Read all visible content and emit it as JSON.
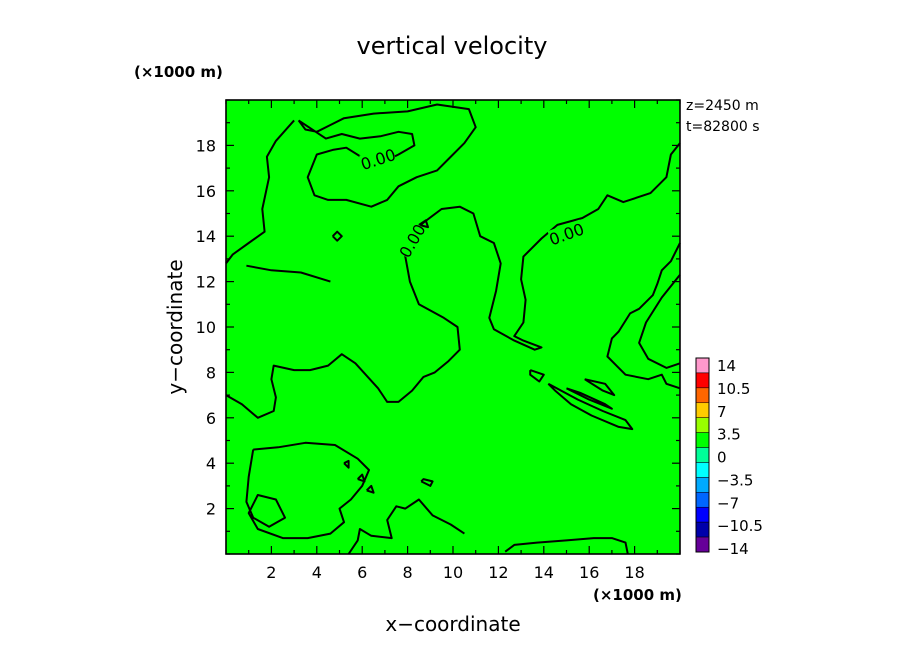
{
  "chart_data": {
    "type": "heatmap",
    "title": "vertical velocity",
    "xlabel": "x−coordinate",
    "ylabel": "y−coordinate",
    "x_unit": "(×1000 m)",
    "y_unit": "(×1000 m)",
    "xlim": [
      0,
      20
    ],
    "ylim": [
      0,
      20
    ],
    "x_ticks": [
      2,
      4,
      6,
      8,
      10,
      12,
      14,
      16,
      18
    ],
    "y_ticks": [
      2,
      4,
      6,
      8,
      10,
      12,
      14,
      16,
      18
    ],
    "x_tick_labels": [
      "2",
      "4",
      "6",
      "8",
      "10",
      "12",
      "14",
      "16",
      "18"
    ],
    "y_tick_labels": [
      "2",
      "4",
      "6",
      "8",
      "10",
      "12",
      "14",
      "16",
      "18"
    ],
    "annotations": [
      "z=2450  m",
      "t=82800  s"
    ],
    "fill_level": "0",
    "fill_color": "#00ff00",
    "contour_labels": [
      {
        "text": "0.00",
        "x": 6.7,
        "y": 17.4,
        "angle": -18
      },
      {
        "text": "0.00",
        "x": 15.0,
        "y": 14.1,
        "angle": -20
      },
      {
        "text": "0.00",
        "x": 8.2,
        "y": 13.8,
        "angle": -60
      }
    ],
    "contours": [
      [
        [
          3,
          19.1
        ],
        [
          2.2,
          18.2
        ],
        [
          1.8,
          17.5
        ],
        [
          1.9,
          16.6
        ],
        [
          1.6,
          15.2
        ],
        [
          1.7,
          14.2
        ],
        [
          1,
          13.7
        ],
        [
          0.3,
          13.2
        ],
        [
          0,
          12.8
        ]
      ],
      [
        [
          0,
          7.0
        ],
        [
          0.7,
          6.6
        ],
        [
          1.4,
          6.0
        ],
        [
          2.1,
          6.3
        ],
        [
          2.2,
          6.9
        ],
        [
          2.0,
          7.7
        ],
        [
          2.1,
          8.3
        ],
        [
          3.0,
          8.1
        ],
        [
          3.7,
          8.1
        ],
        [
          4.5,
          8.3
        ],
        [
          5.1,
          8.8
        ],
        [
          5.7,
          8.4
        ],
        [
          6.7,
          7.3
        ],
        [
          7.1,
          6.7
        ],
        [
          7.6,
          6.7
        ],
        [
          8.2,
          7.2
        ],
        [
          8.7,
          7.8
        ],
        [
          9.2,
          8.0
        ],
        [
          9.8,
          8.5
        ],
        [
          10.3,
          9.0
        ],
        [
          10.2,
          10.0
        ],
        [
          9.6,
          10.4
        ],
        [
          8.5,
          11.0
        ],
        [
          8.1,
          12.0
        ],
        [
          7.9,
          13.1
        ],
        [
          8.0,
          14.0
        ],
        [
          8.7,
          14.6
        ],
        [
          9.5,
          15.2
        ],
        [
          10.3,
          15.3
        ],
        [
          10.9,
          15.0
        ],
        [
          11.2,
          14.0
        ],
        [
          11.8,
          13.7
        ],
        [
          12.1,
          12.8
        ],
        [
          11.9,
          11.6
        ],
        [
          11.6,
          10.4
        ],
        [
          11.8,
          9.9
        ],
        [
          12.7,
          9.4
        ],
        [
          13.6,
          9.0
        ],
        [
          13.9,
          9.1
        ],
        [
          13.1,
          9.4
        ],
        [
          12.7,
          9.6
        ],
        [
          13.1,
          10.2
        ],
        [
          13.2,
          11.2
        ],
        [
          13.0,
          12.1
        ],
        [
          13.1,
          13.1
        ],
        [
          13.9,
          13.9
        ],
        [
          14.6,
          14.5
        ],
        [
          15.7,
          14.8
        ],
        [
          16.4,
          15.2
        ],
        [
          16.8,
          15.8
        ],
        [
          17.5,
          15.5
        ],
        [
          18.7,
          15.9
        ],
        [
          19.4,
          16.6
        ],
        [
          19.6,
          17.6
        ],
        [
          20,
          18.1
        ]
      ],
      [
        [
          20,
          13.7
        ],
        [
          19.6,
          12.9
        ],
        [
          19.2,
          12.5
        ],
        [
          19.0,
          11.9
        ],
        [
          18.8,
          11.4
        ],
        [
          18.2,
          10.8
        ],
        [
          17.8,
          10.6
        ],
        [
          17.3,
          9.8
        ],
        [
          17.0,
          9.5
        ],
        [
          16.8,
          8.7
        ],
        [
          17.2,
          8.3
        ],
        [
          17.6,
          7.9
        ],
        [
          18.6,
          7.7
        ],
        [
          19.2,
          7.9
        ],
        [
          19.4,
          7.5
        ],
        [
          20,
          7.3
        ]
      ],
      [
        [
          20,
          12.3
        ],
        [
          19.2,
          11.3
        ],
        [
          18.5,
          10.2
        ],
        [
          18.2,
          9.3
        ],
        [
          18.6,
          8.6
        ],
        [
          19.4,
          8.2
        ],
        [
          20,
          8.4
        ]
      ],
      [
        [
          3.2,
          19.1
        ],
        [
          3.5,
          18.7
        ],
        [
          4.0,
          18.6
        ],
        [
          4.6,
          18.9
        ],
        [
          5.2,
          19.2
        ],
        [
          6.5,
          19.4
        ],
        [
          8.0,
          19.5
        ],
        [
          9.3,
          19.8
        ],
        [
          10.7,
          19.6
        ],
        [
          11.0,
          18.8
        ],
        [
          10.5,
          18.1
        ],
        [
          9.8,
          17.4
        ],
        [
          9.3,
          16.9
        ],
        [
          8.4,
          16.6
        ],
        [
          7.6,
          16.2
        ],
        [
          7.1,
          15.6
        ],
        [
          6.4,
          15.3
        ],
        [
          5.3,
          15.6
        ],
        [
          4.5,
          15.6
        ],
        [
          3.9,
          15.8
        ],
        [
          3.6,
          16.6
        ],
        [
          4.0,
          17.6
        ],
        [
          4.7,
          17.8
        ],
        [
          5.3,
          17.9
        ],
        [
          6.1,
          17.4
        ],
        [
          6.8,
          17.2
        ],
        [
          7.6,
          17.6
        ],
        [
          8.3,
          18.0
        ],
        [
          8.2,
          18.5
        ],
        [
          7.6,
          18.6
        ],
        [
          6.8,
          18.4
        ],
        [
          5.9,
          18.3
        ],
        [
          5.1,
          18.5
        ],
        [
          4.4,
          18.3
        ],
        [
          3.2,
          19.1
        ]
      ],
      [
        [
          4.6,
          12.0
        ],
        [
          3.3,
          12.4
        ],
        [
          2.0,
          12.5
        ],
        [
          0.9,
          12.7
        ]
      ],
      [
        [
          1.2,
          4.6
        ],
        [
          2.3,
          4.7
        ],
        [
          3.5,
          4.9
        ],
        [
          4.8,
          4.8
        ],
        [
          5.8,
          4.2
        ],
        [
          6.3,
          3.7
        ],
        [
          6.0,
          3.0
        ],
        [
          5.5,
          2.4
        ],
        [
          5.0,
          2.0
        ],
        [
          5.2,
          1.4
        ],
        [
          4.6,
          0.9
        ],
        [
          3.6,
          0.7
        ],
        [
          2.5,
          0.7
        ],
        [
          1.4,
          1.1
        ],
        [
          1.0,
          1.8
        ],
        [
          1.4,
          2.6
        ],
        [
          2.2,
          2.4
        ],
        [
          2.6,
          1.6
        ],
        [
          1.9,
          1.2
        ],
        [
          1.2,
          1.6
        ],
        [
          0.9,
          2.3
        ],
        [
          1.0,
          3.4
        ],
        [
          1.2,
          4.6
        ]
      ],
      [
        [
          10.5,
          0.9
        ],
        [
          9.9,
          1.3
        ],
        [
          9.1,
          1.7
        ],
        [
          8.5,
          2.4
        ],
        [
          7.9,
          2.0
        ],
        [
          7.5,
          2.1
        ],
        [
          7.1,
          1.5
        ],
        [
          7.3,
          0.7
        ],
        [
          6.4,
          0.8
        ],
        [
          5.9,
          1.1
        ],
        [
          5.8,
          0.6
        ],
        [
          5.4,
          0.0
        ]
      ],
      [
        [
          12.3,
          0.1
        ],
        [
          12.7,
          0.4
        ],
        [
          13.7,
          0.5
        ],
        [
          15.0,
          0.6
        ],
        [
          16.2,
          0.7
        ],
        [
          17.0,
          0.7
        ],
        [
          17.6,
          0.5
        ],
        [
          17.7,
          0.0
        ]
      ],
      [
        [
          14.2,
          7.5
        ],
        [
          15.5,
          6.8
        ],
        [
          16.6,
          6.3
        ],
        [
          17.6,
          5.9
        ],
        [
          17.9,
          5.5
        ],
        [
          17.3,
          5.6
        ],
        [
          16.1,
          6.1
        ],
        [
          15.2,
          6.6
        ],
        [
          14.5,
          7.2
        ],
        [
          14.2,
          7.5
        ]
      ],
      [
        [
          15.0,
          7.3
        ],
        [
          16.0,
          6.8
        ],
        [
          17.0,
          6.4
        ],
        [
          16.7,
          6.6
        ],
        [
          15.6,
          7.1
        ],
        [
          15.0,
          7.3
        ]
      ],
      [
        [
          15.8,
          7.7
        ],
        [
          16.7,
          7.5
        ],
        [
          17.1,
          7.0
        ],
        [
          16.6,
          7.2
        ],
        [
          15.8,
          7.7
        ]
      ],
      [
        [
          13.4,
          8.1
        ],
        [
          14.0,
          7.9
        ],
        [
          13.8,
          7.6
        ],
        [
          13.4,
          7.9
        ],
        [
          13.4,
          8.1
        ]
      ],
      [
        [
          4.7,
          14.0
        ],
        [
          4.9,
          13.8
        ],
        [
          5.1,
          14.0
        ],
        [
          4.9,
          14.2
        ],
        [
          4.7,
          14.0
        ]
      ],
      [
        [
          5.2,
          4.0
        ],
        [
          5.4,
          3.8
        ],
        [
          5.4,
          4.1
        ],
        [
          5.2,
          4.0
        ]
      ],
      [
        [
          5.8,
          3.3
        ],
        [
          6.1,
          3.2
        ],
        [
          6.0,
          3.5
        ],
        [
          5.8,
          3.3
        ]
      ],
      [
        [
          6.2,
          2.8
        ],
        [
          6.5,
          2.7
        ],
        [
          6.4,
          3.0
        ],
        [
          6.2,
          2.8
        ]
      ],
      [
        [
          8.6,
          3.2
        ],
        [
          9.0,
          3.0
        ],
        [
          9.1,
          3.2
        ],
        [
          8.7,
          3.3
        ],
        [
          8.6,
          3.2
        ]
      ],
      [
        [
          7.8,
          13.6
        ],
        [
          8.1,
          13.5
        ],
        [
          8.0,
          13.8
        ],
        [
          7.8,
          13.6
        ]
      ],
      [
        [
          8.1,
          14.2
        ],
        [
          8.5,
          14.0
        ],
        [
          8.4,
          14.4
        ],
        [
          8.1,
          14.2
        ]
      ],
      [
        [
          8.5,
          14.5
        ],
        [
          8.9,
          14.4
        ],
        [
          8.8,
          14.7
        ],
        [
          8.5,
          14.5
        ]
      ]
    ],
    "colorbar": {
      "labels": [
        "14",
        "10.5",
        "7",
        "3.5",
        "0",
        "−3.5",
        "−7",
        "−10.5",
        "−14"
      ],
      "colors": [
        "#ff99cc",
        "#ff0000",
        "#ff6600",
        "#ffcc00",
        "#99ff00",
        "#00ff00",
        "#00ff99",
        "#00ffff",
        "#00aaff",
        "#0066ff",
        "#0000ff",
        "#0000aa",
        "#660099"
      ]
    }
  }
}
